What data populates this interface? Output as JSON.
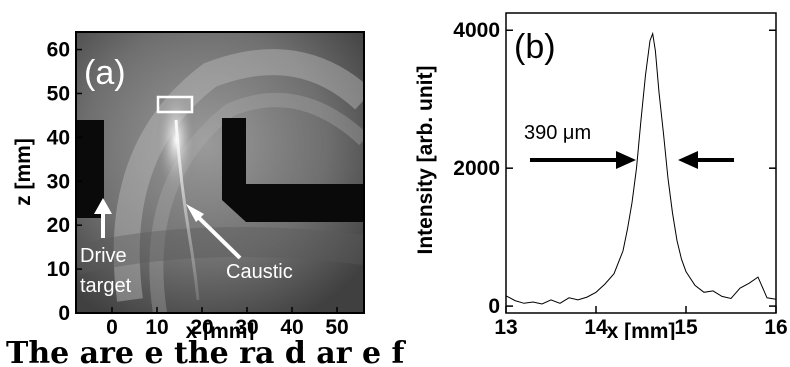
{
  "chart_data": [
    {
      "type": "image",
      "panel_label": "(a)",
      "xlabel": "x [mm]",
      "ylabel": "z [mm]",
      "xlim": [
        -8,
        56
      ],
      "ylim": [
        0,
        64
      ],
      "xticks": [
        0,
        10,
        20,
        30,
        40,
        50
      ],
      "yticks": [
        0,
        10,
        20,
        30,
        40,
        50,
        60
      ],
      "annotations": {
        "drive_target_line1": "Drive",
        "drive_target_line2": "target",
        "caustic": "Caustic"
      }
    },
    {
      "type": "line",
      "panel_label": "(b)",
      "xlabel": "x [mm]",
      "ylabel": "Intensity [arb. unit]",
      "xlim": [
        13,
        16
      ],
      "ylim": [
        -100,
        4250
      ],
      "xticks": [
        13,
        14,
        15,
        16
      ],
      "yticks": [
        0,
        2000,
        4000
      ],
      "annotation": "390 μm",
      "series": [
        {
          "x": [
            13.0,
            13.1,
            13.2,
            13.3,
            13.4,
            13.5,
            13.6,
            13.7,
            13.8,
            13.9,
            14.0,
            14.1,
            14.2,
            14.3,
            14.35,
            14.4,
            14.45,
            14.5,
            14.55,
            14.6,
            14.63,
            14.66,
            14.7,
            14.75,
            14.8,
            14.85,
            14.9,
            14.95,
            15.0,
            15.1,
            15.2,
            15.3,
            15.4,
            15.5,
            15.6,
            15.7,
            15.8,
            15.9,
            16.0
          ],
          "y": [
            150,
            80,
            40,
            60,
            30,
            90,
            40,
            120,
            90,
            130,
            200,
            320,
            470,
            800,
            1120,
            1500,
            2000,
            2700,
            3350,
            3850,
            3950,
            3700,
            3100,
            2500,
            1850,
            1350,
            950,
            680,
            500,
            300,
            200,
            220,
            140,
            110,
            260,
            330,
            420,
            120,
            100
          ]
        }
      ]
    }
  ],
  "caption_text": "The    are  e    the          ra    d    ar    e  f"
}
